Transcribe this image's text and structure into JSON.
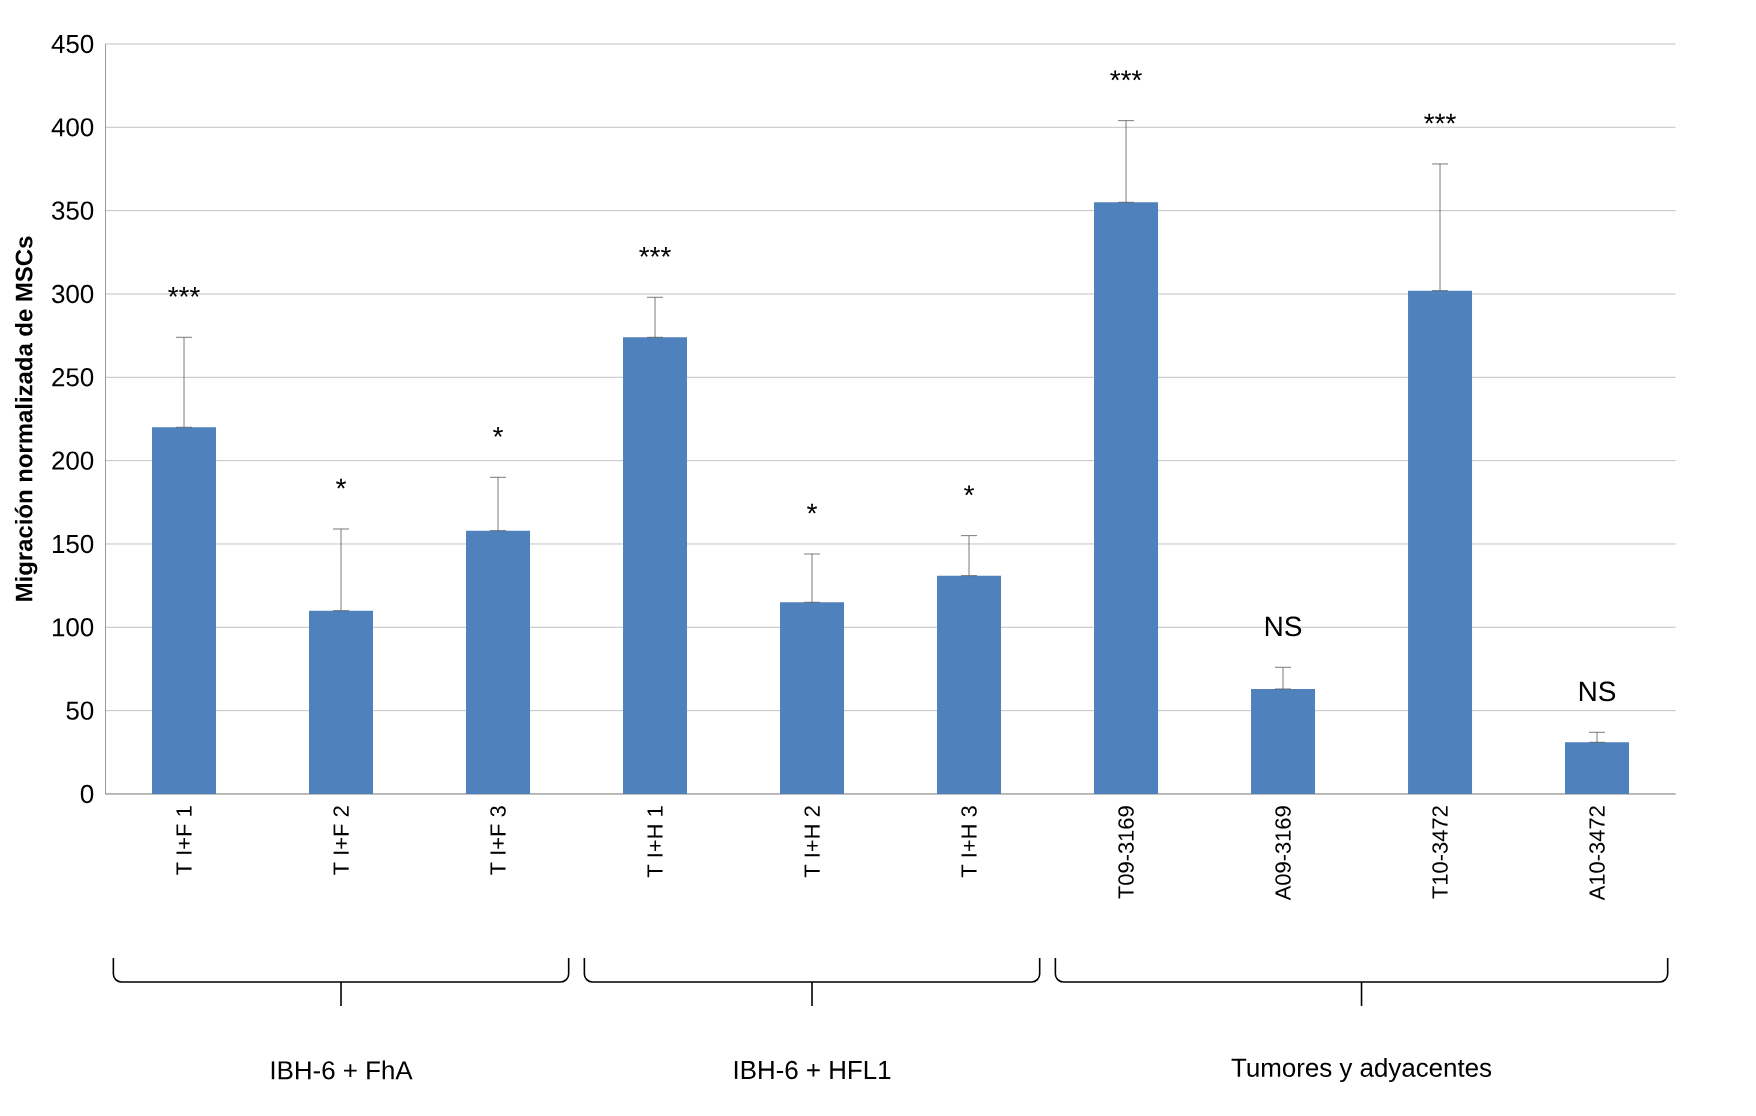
{
  "chart_data": {
    "type": "bar",
    "ylabel": "Migración normalizada de MSCs",
    "categories": [
      "T I+F 1",
      "T I+F 2",
      "T I+F 3",
      "T I+H 1",
      "T I+H 2",
      "T I+H 3",
      "T09-3169",
      "A09-3169",
      "T10-3472",
      "A10-3472"
    ],
    "values": [
      220,
      110,
      158,
      274,
      115,
      131,
      355,
      63,
      302,
      31
    ],
    "errors": [
      [
        220,
        274
      ],
      [
        110,
        159
      ],
      [
        158,
        190
      ],
      [
        274,
        298
      ],
      [
        115,
        144
      ],
      [
        131,
        155
      ],
      [
        355,
        404
      ],
      [
        63,
        76
      ],
      [
        302,
        378
      ],
      [
        31,
        37
      ]
    ],
    "color": "#4f81bd",
    "ylim": [
      0,
      450
    ],
    "yticks": [
      0,
      50,
      100,
      150,
      200,
      250,
      300,
      350,
      400,
      450
    ],
    "grid": "y",
    "annotations": [
      "***",
      "*",
      "*",
      "***",
      "*",
      "*",
      "***",
      "NS",
      "***",
      "NS",
      "IBH-6 + FhA",
      "IBH-6 + HFL1",
      "Tumores y adyacentes"
    ]
  }
}
